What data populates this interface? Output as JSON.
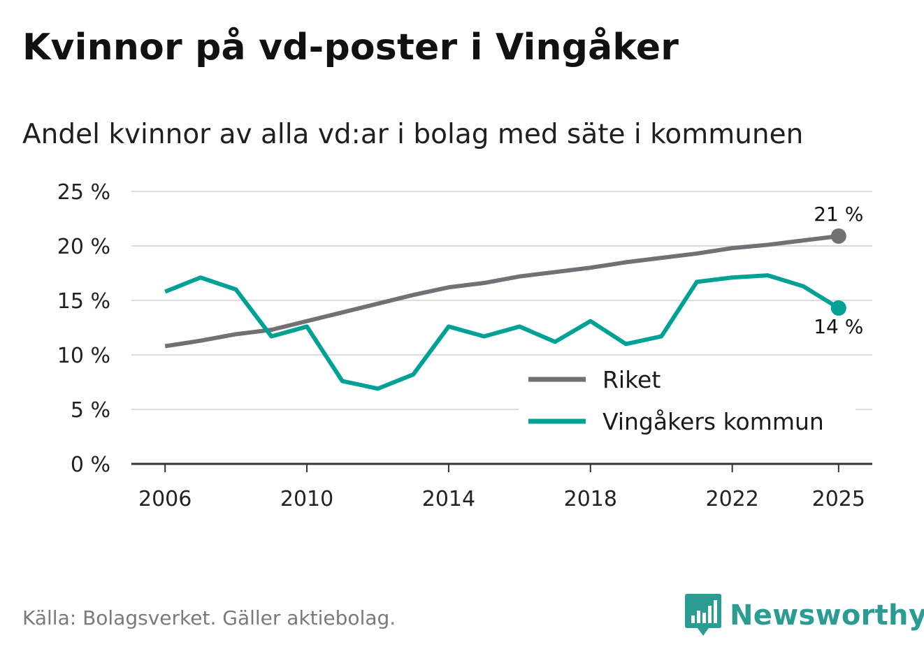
{
  "colors": {
    "riket": "#707075",
    "kommun": "#00a195",
    "grid": "#dcdcdc",
    "axis": "#333333",
    "brand": "#2b9c92"
  },
  "source": "Källa: Bolagsverket. Gäller aktiebolag.",
  "brand": {
    "name": "Newsworthy",
    "icon": "bar-chart-speech-bubble-icon"
  },
  "chart_data": {
    "type": "line",
    "title": "Kvinnor på vd-poster i Vingåker",
    "subtitle": "Andel kvinnor av alla vd:ar i bolag med säte i kommunen",
    "xlabel": "",
    "ylabel": "",
    "x": [
      2006,
      2007,
      2008,
      2009,
      2010,
      2011,
      2012,
      2013,
      2014,
      2015,
      2016,
      2017,
      2018,
      2019,
      2020,
      2021,
      2022,
      2023,
      2024,
      2025
    ],
    "xlim": [
      2005.05,
      2025.95
    ],
    "ylim": [
      0,
      25
    ],
    "grid": true,
    "y_ticks": [
      {
        "value": 0,
        "label": "0 %"
      },
      {
        "value": 5,
        "label": "5 %"
      },
      {
        "value": 10,
        "label": "10 %"
      },
      {
        "value": 15,
        "label": "15 %"
      },
      {
        "value": 20,
        "label": "20 %"
      },
      {
        "value": 25,
        "label": "25 %"
      }
    ],
    "x_ticks": [
      {
        "value": 2006,
        "label": "2006"
      },
      {
        "value": 2010,
        "label": "2010"
      },
      {
        "value": 2014,
        "label": "2014"
      },
      {
        "value": 2018,
        "label": "2018"
      },
      {
        "value": 2022,
        "label": "2022"
      },
      {
        "value": 2025,
        "label": "2025"
      }
    ],
    "legend_position": "lower-right",
    "series": [
      {
        "name": "Riket",
        "color": "#707075",
        "values": [
          10.8,
          11.3,
          11.9,
          12.3,
          13.1,
          13.9,
          14.7,
          15.5,
          16.2,
          16.6,
          17.2,
          17.6,
          18.0,
          18.5,
          18.9,
          19.3,
          19.8,
          20.1,
          20.5,
          20.9
        ],
        "end_label": "21 %",
        "end_label_position": "above"
      },
      {
        "name": "Vingåkers kommun",
        "color": "#00a195",
        "values": [
          15.8,
          17.1,
          16.0,
          11.7,
          12.6,
          7.6,
          6.9,
          8.2,
          12.6,
          11.7,
          12.6,
          11.2,
          13.1,
          11.0,
          11.7,
          16.7,
          17.1,
          17.3,
          16.3,
          14.3
        ],
        "end_label": "14 %",
        "end_label_position": "below"
      }
    ]
  }
}
